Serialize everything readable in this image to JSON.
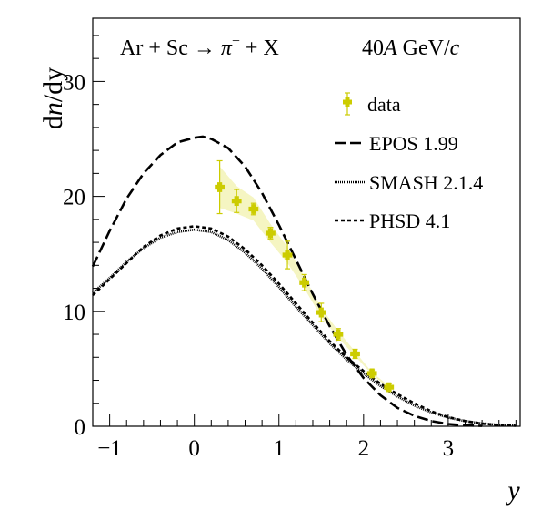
{
  "chart_data": {
    "type": "line",
    "xlabel": "y",
    "ylabel_prefix": "d",
    "ylabel_var": "n",
    "ylabel_suffix": "/dy",
    "xlim": [
      -1.2,
      3.85
    ],
    "ylim": [
      0,
      35.5
    ],
    "x_ticks": [
      -1,
      0,
      1,
      2,
      3
    ],
    "y_ticks": [
      0,
      10,
      20,
      30
    ],
    "grid": false,
    "legend_position": "top-right",
    "header": {
      "reaction_lhs": "Ar + Sc",
      "arrow": "→",
      "reaction_particle": "π",
      "reaction_charge": "−",
      "reaction_rhs": "+ X",
      "energy_value": "40",
      "energy_a": "A",
      "energy_unit": "GeV/",
      "energy_c": "c"
    },
    "data_color": "#cccc00",
    "series": [
      {
        "name": "data",
        "style": "markers",
        "x": [
          0.3,
          0.5,
          0.7,
          0.9,
          1.1,
          1.3,
          1.5,
          1.7,
          1.9,
          2.1,
          2.3
        ],
        "y": [
          20.8,
          19.6,
          18.9,
          16.8,
          14.9,
          12.5,
          9.9,
          8.0,
          6.3,
          4.6,
          3.4
        ],
        "err_lo": [
          2.3,
          1.0,
          0.5,
          0.5,
          1.2,
          0.7,
          0.8,
          0.5,
          0.4,
          0.3,
          0.3
        ],
        "err_hi": [
          2.3,
          1.0,
          0.5,
          0.5,
          1.2,
          0.7,
          0.8,
          0.5,
          0.4,
          0.3,
          0.3
        ],
        "sys_lo": [
          19.0,
          18.5,
          17.9,
          16.0,
          14.2,
          12.0,
          9.5,
          7.7,
          6.1,
          4.5,
          3.3
        ],
        "sys_hi": [
          22.6,
          20.9,
          19.9,
          17.6,
          15.6,
          13.0,
          10.3,
          8.3,
          6.5,
          4.7,
          3.5
        ]
      },
      {
        "name": "EPOS 1.99",
        "style": "long-dash",
        "x": [
          -1.2,
          -1.0,
          -0.8,
          -0.6,
          -0.4,
          -0.2,
          0.0,
          0.1,
          0.2,
          0.4,
          0.6,
          0.8,
          1.0,
          1.2,
          1.4,
          1.6,
          1.8,
          2.0,
          2.2,
          2.4,
          2.6,
          2.8,
          3.0,
          3.2,
          3.4
        ],
        "y": [
          13.9,
          17.0,
          19.8,
          22.0,
          23.6,
          24.7,
          25.1,
          25.2,
          25.0,
          24.2,
          22.6,
          20.3,
          17.5,
          14.5,
          11.5,
          8.7,
          6.2,
          4.2,
          2.7,
          1.6,
          0.9,
          0.45,
          0.2,
          0.08,
          0.03
        ]
      },
      {
        "name": "SMASH 2.1.4",
        "style": "dotted",
        "x": [
          -1.2,
          -1.0,
          -0.8,
          -0.6,
          -0.4,
          -0.2,
          0.0,
          0.2,
          0.4,
          0.6,
          0.8,
          1.0,
          1.2,
          1.4,
          1.6,
          1.8,
          2.0,
          2.2,
          2.4,
          2.6,
          2.8,
          3.0,
          3.2,
          3.4,
          3.6,
          3.8
        ],
        "y": [
          11.6,
          12.9,
          14.3,
          15.5,
          16.4,
          16.9,
          17.1,
          16.9,
          16.2,
          15.1,
          13.7,
          12.1,
          10.4,
          8.8,
          7.2,
          5.8,
          4.6,
          3.5,
          2.6,
          1.8,
          1.2,
          0.75,
          0.45,
          0.25,
          0.12,
          0.06
        ]
      },
      {
        "name": "PHSD 4.1",
        "style": "short-dash",
        "x": [
          -1.2,
          -1.0,
          -0.8,
          -0.6,
          -0.4,
          -0.2,
          0.0,
          0.2,
          0.4,
          0.6,
          0.8,
          1.0,
          1.2,
          1.4,
          1.6,
          1.8,
          2.0,
          2.2,
          2.4,
          2.6,
          2.8,
          3.0,
          3.2,
          3.4,
          3.6,
          3.8
        ],
        "y": [
          11.4,
          12.8,
          14.2,
          15.6,
          16.6,
          17.2,
          17.4,
          17.2,
          16.5,
          15.4,
          14.0,
          12.4,
          10.7,
          9.0,
          7.4,
          6.0,
          4.8,
          3.7,
          2.8,
          2.0,
          1.3,
          0.8,
          0.45,
          0.22,
          0.1,
          0.04
        ]
      }
    ]
  }
}
